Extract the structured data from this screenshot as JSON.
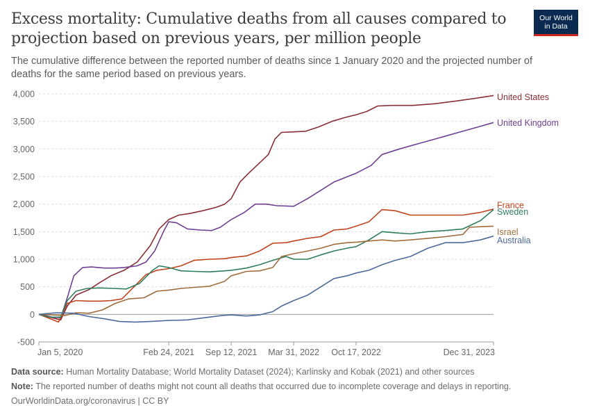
{
  "header": {
    "title": "Excess mortality: Cumulative deaths from all causes compared to projection based on previous years, per million people",
    "subtitle": "The cumulative difference between the reported number of deaths since 1 January 2020 and the projected number of deaths for the same period based on previous years.",
    "logo_line1": "Our World",
    "logo_line2": "in Data"
  },
  "footer": {
    "source_label": "Data source:",
    "source_text": " Human Mortality Database; World Mortality Dataset (2024); Karlinsky and Kobak (2021) and other sources",
    "note_label": "Note:",
    "note_text": " The reported number of deaths might not count all deaths that occurred due to incomplete coverage and delays in reporting.",
    "credit": "OurWorldinData.org/coronavirus | CC BY"
  },
  "chart_data": {
    "type": "line",
    "title": "Excess mortality: Cumulative deaths from all causes compared to projection based on previous years, per million people",
    "xlabel": "",
    "ylabel": "",
    "x_type": "date",
    "xlim": [
      "2020-01-05",
      "2023-12-31"
    ],
    "ylim": [
      -500,
      4000
    ],
    "y_ticks": [
      -500,
      0,
      500,
      1000,
      1500,
      2000,
      2500,
      3000,
      3500,
      4000
    ],
    "y_tick_labels": [
      "-500",
      "0",
      "500",
      "1,000",
      "1,500",
      "2,000",
      "2,500",
      "3,000",
      "3,500",
      "4,000"
    ],
    "x_ticks": [
      "2020-01-05",
      "2021-02-24",
      "2021-09-12",
      "2022-03-31",
      "2022-10-17",
      "2023-12-31"
    ],
    "x_tick_labels": [
      "Jan 5, 2020",
      "Feb 24, 2021",
      "Sep 12, 2021",
      "Mar 31, 2022",
      "Oct 17, 2022",
      "Dec 31, 2023"
    ],
    "grid": "horizontal dashed",
    "legend": "line-end labels",
    "series": [
      {
        "name": "United States",
        "color": "#8a2d36",
        "points": [
          [
            "2020-01-05",
            0
          ],
          [
            "2020-02-09",
            -50
          ],
          [
            "2020-03-15",
            -100
          ],
          [
            "2020-04-05",
            150
          ],
          [
            "2020-05-03",
            350
          ],
          [
            "2020-06-14",
            450
          ],
          [
            "2020-07-19",
            580
          ],
          [
            "2020-08-23",
            700
          ],
          [
            "2020-10-04",
            800
          ],
          [
            "2020-11-15",
            950
          ],
          [
            "2020-12-27",
            1250
          ],
          [
            "2021-01-24",
            1550
          ],
          [
            "2021-02-24",
            1720
          ],
          [
            "2021-03-28",
            1800
          ],
          [
            "2021-05-02",
            1830
          ],
          [
            "2021-06-13",
            1880
          ],
          [
            "2021-07-25",
            1940
          ],
          [
            "2021-08-22",
            2000
          ],
          [
            "2021-09-12",
            2100
          ],
          [
            "2021-10-10",
            2400
          ],
          [
            "2021-11-07",
            2560
          ],
          [
            "2021-12-12",
            2750
          ],
          [
            "2022-01-09",
            2900
          ],
          [
            "2022-01-30",
            3180
          ],
          [
            "2022-02-20",
            3300
          ],
          [
            "2022-03-31",
            3310
          ],
          [
            "2022-05-08",
            3320
          ],
          [
            "2022-06-19",
            3400
          ],
          [
            "2022-07-31",
            3500
          ],
          [
            "2022-09-11",
            3570
          ],
          [
            "2022-10-17",
            3620
          ],
          [
            "2022-11-20",
            3680
          ],
          [
            "2022-12-25",
            3780
          ],
          [
            "2023-02-05",
            3790
          ],
          [
            "2023-04-16",
            3790
          ],
          [
            "2023-06-25",
            3820
          ],
          [
            "2023-09-03",
            3870
          ],
          [
            "2023-11-05",
            3920
          ],
          [
            "2023-12-31",
            3970
          ]
        ]
      },
      {
        "name": "United Kingdom",
        "color": "#6d3e91",
        "points": [
          [
            "2020-01-05",
            0
          ],
          [
            "2020-02-16",
            -50
          ],
          [
            "2020-03-15",
            -60
          ],
          [
            "2020-04-05",
            300
          ],
          [
            "2020-04-26",
            700
          ],
          [
            "2020-05-24",
            850
          ],
          [
            "2020-06-21",
            860
          ],
          [
            "2020-08-02",
            840
          ],
          [
            "2020-09-06",
            840
          ],
          [
            "2020-10-04",
            850
          ],
          [
            "2020-11-15",
            880
          ],
          [
            "2020-12-13",
            950
          ],
          [
            "2021-01-10",
            1150
          ],
          [
            "2021-02-07",
            1500
          ],
          [
            "2021-02-24",
            1680
          ],
          [
            "2021-03-21",
            1660
          ],
          [
            "2021-04-25",
            1550
          ],
          [
            "2021-06-06",
            1530
          ],
          [
            "2021-07-11",
            1520
          ],
          [
            "2021-08-08",
            1580
          ],
          [
            "2021-09-12",
            1720
          ],
          [
            "2021-10-24",
            1850
          ],
          [
            "2021-11-28",
            2000
          ],
          [
            "2022-01-02",
            2000
          ],
          [
            "2022-02-06",
            1970
          ],
          [
            "2022-03-31",
            1960
          ],
          [
            "2022-05-15",
            2100
          ],
          [
            "2022-06-26",
            2250
          ],
          [
            "2022-08-07",
            2400
          ],
          [
            "2022-10-17",
            2560
          ],
          [
            "2022-12-04",
            2700
          ],
          [
            "2023-01-08",
            2900
          ],
          [
            "2023-03-05",
            3000
          ],
          [
            "2023-05-07",
            3100
          ],
          [
            "2023-07-09",
            3200
          ],
          [
            "2023-09-10",
            3300
          ],
          [
            "2023-11-12",
            3400
          ],
          [
            "2023-12-31",
            3480
          ]
        ]
      },
      {
        "name": "France",
        "color": "#c0431d",
        "points": [
          [
            "2020-01-05",
            0
          ],
          [
            "2020-02-02",
            -60
          ],
          [
            "2020-03-08",
            -140
          ],
          [
            "2020-04-05",
            200
          ],
          [
            "2020-05-03",
            250
          ],
          [
            "2020-06-14",
            240
          ],
          [
            "2020-07-19",
            240
          ],
          [
            "2020-08-23",
            250
          ],
          [
            "2020-09-27",
            280
          ],
          [
            "2020-11-01",
            480
          ],
          [
            "2020-12-13",
            720
          ],
          [
            "2021-01-17",
            800
          ],
          [
            "2021-02-24",
            830
          ],
          [
            "2021-04-04",
            880
          ],
          [
            "2021-05-16",
            980
          ],
          [
            "2021-07-04",
            1000
          ],
          [
            "2021-08-22",
            1010
          ],
          [
            "2021-09-12",
            1030
          ],
          [
            "2021-10-31",
            1060
          ],
          [
            "2021-12-12",
            1150
          ],
          [
            "2022-01-23",
            1290
          ],
          [
            "2022-03-06",
            1300
          ],
          [
            "2022-03-31",
            1330
          ],
          [
            "2022-05-15",
            1380
          ],
          [
            "2022-06-26",
            1410
          ],
          [
            "2022-08-07",
            1530
          ],
          [
            "2022-09-18",
            1550
          ],
          [
            "2022-10-17",
            1600
          ],
          [
            "2022-11-27",
            1680
          ],
          [
            "2023-01-08",
            1900
          ],
          [
            "2023-02-19",
            1880
          ],
          [
            "2023-04-09",
            1800
          ],
          [
            "2023-06-04",
            1800
          ],
          [
            "2023-07-30",
            1800
          ],
          [
            "2023-09-24",
            1800
          ],
          [
            "2023-11-19",
            1850
          ],
          [
            "2023-12-31",
            1910
          ]
        ]
      },
      {
        "name": "Sweden",
        "color": "#2f7d5c",
        "points": [
          [
            "2020-01-05",
            0
          ],
          [
            "2020-02-09",
            -50
          ],
          [
            "2020-03-15",
            -50
          ],
          [
            "2020-04-05",
            250
          ],
          [
            "2020-05-03",
            420
          ],
          [
            "2020-06-07",
            470
          ],
          [
            "2020-07-19",
            480
          ],
          [
            "2020-08-30",
            470
          ],
          [
            "2020-10-11",
            460
          ],
          [
            "2020-11-22",
            560
          ],
          [
            "2021-01-03",
            800
          ],
          [
            "2021-01-24",
            880
          ],
          [
            "2021-02-24",
            850
          ],
          [
            "2021-04-04",
            790
          ],
          [
            "2021-05-16",
            780
          ],
          [
            "2021-07-04",
            770
          ],
          [
            "2021-08-22",
            790
          ],
          [
            "2021-09-12",
            800
          ],
          [
            "2021-10-31",
            840
          ],
          [
            "2021-12-12",
            900
          ],
          [
            "2022-01-23",
            980
          ],
          [
            "2022-03-06",
            1050
          ],
          [
            "2022-03-31",
            1000
          ],
          [
            "2022-05-15",
            1000
          ],
          [
            "2022-06-26",
            1080
          ],
          [
            "2022-08-07",
            1150
          ],
          [
            "2022-09-18",
            1200
          ],
          [
            "2022-10-17",
            1230
          ],
          [
            "2022-11-27",
            1350
          ],
          [
            "2023-01-08",
            1500
          ],
          [
            "2023-02-19",
            1480
          ],
          [
            "2023-04-09",
            1460
          ],
          [
            "2023-06-04",
            1500
          ],
          [
            "2023-07-30",
            1520
          ],
          [
            "2023-09-24",
            1550
          ],
          [
            "2023-11-19",
            1700
          ],
          [
            "2023-12-31",
            1900
          ]
        ]
      },
      {
        "name": "Israel",
        "color": "#a16c3c",
        "points": [
          [
            "2020-01-05",
            0
          ],
          [
            "2020-02-16",
            -10
          ],
          [
            "2020-03-29",
            -20
          ],
          [
            "2020-05-03",
            30
          ],
          [
            "2020-06-14",
            20
          ],
          [
            "2020-07-26",
            80
          ],
          [
            "2020-09-06",
            200
          ],
          [
            "2020-10-18",
            280
          ],
          [
            "2020-12-06",
            300
          ],
          [
            "2021-01-17",
            420
          ],
          [
            "2021-02-24",
            440
          ],
          [
            "2021-04-04",
            470
          ],
          [
            "2021-05-16",
            490
          ],
          [
            "2021-07-04",
            510
          ],
          [
            "2021-08-22",
            600
          ],
          [
            "2021-09-12",
            700
          ],
          [
            "2021-10-31",
            780
          ],
          [
            "2021-12-12",
            790
          ],
          [
            "2022-01-23",
            850
          ],
          [
            "2022-02-20",
            1050
          ],
          [
            "2022-03-31",
            1100
          ],
          [
            "2022-05-15",
            1150
          ],
          [
            "2022-06-26",
            1200
          ],
          [
            "2022-08-07",
            1270
          ],
          [
            "2022-09-18",
            1300
          ],
          [
            "2022-10-17",
            1310
          ],
          [
            "2022-11-27",
            1330
          ],
          [
            "2023-01-08",
            1350
          ],
          [
            "2023-02-19",
            1330
          ],
          [
            "2023-04-09",
            1350
          ],
          [
            "2023-06-04",
            1380
          ],
          [
            "2023-07-30",
            1410
          ],
          [
            "2023-09-24",
            1450
          ],
          [
            "2023-10-15",
            1580
          ],
          [
            "2023-11-19",
            1590
          ],
          [
            "2023-12-31",
            1600
          ]
        ]
      },
      {
        "name": "Australia",
        "color": "#4c6a9c",
        "points": [
          [
            "2020-01-05",
            0
          ],
          [
            "2020-03-01",
            30
          ],
          [
            "2020-04-26",
            20
          ],
          [
            "2020-06-14",
            -40
          ],
          [
            "2020-08-02",
            -80
          ],
          [
            "2020-09-20",
            -130
          ],
          [
            "2020-11-08",
            -140
          ],
          [
            "2020-12-27",
            -130
          ],
          [
            "2021-02-24",
            -110
          ],
          [
            "2021-04-25",
            -100
          ],
          [
            "2021-06-20",
            -60
          ],
          [
            "2021-08-15",
            -20
          ],
          [
            "2021-09-12",
            -10
          ],
          [
            "2021-10-31",
            -30
          ],
          [
            "2021-12-12",
            -10
          ],
          [
            "2022-01-23",
            50
          ],
          [
            "2022-02-20",
            150
          ],
          [
            "2022-03-31",
            250
          ],
          [
            "2022-05-15",
            350
          ],
          [
            "2022-06-26",
            500
          ],
          [
            "2022-08-07",
            650
          ],
          [
            "2022-09-18",
            700
          ],
          [
            "2022-10-17",
            750
          ],
          [
            "2022-11-27",
            800
          ],
          [
            "2023-01-08",
            900
          ],
          [
            "2023-02-19",
            980
          ],
          [
            "2023-04-09",
            1050
          ],
          [
            "2023-06-04",
            1200
          ],
          [
            "2023-07-30",
            1300
          ],
          [
            "2023-09-24",
            1300
          ],
          [
            "2023-11-19",
            1350
          ],
          [
            "2023-12-31",
            1420
          ]
        ]
      }
    ]
  }
}
